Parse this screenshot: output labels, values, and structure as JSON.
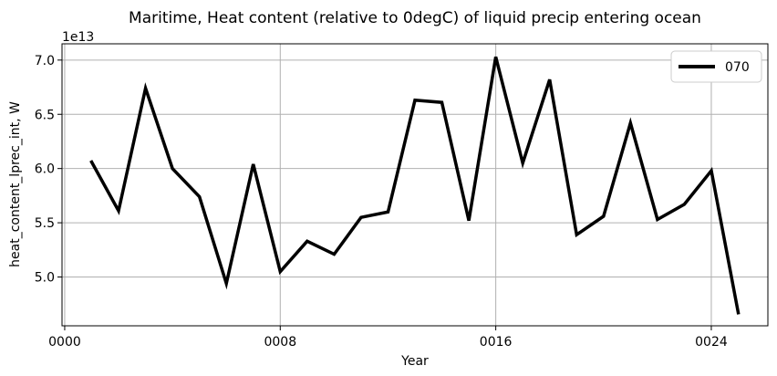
{
  "chart_data": {
    "type": "line",
    "title": "Maritime, Heat content (relative to 0degC) of liquid precip entering ocean",
    "xlabel": "Year",
    "ylabel": "heat_content_lprec_int, W",
    "y_offset_label": "1e13",
    "xlim": [
      -0.1,
      26.1
    ],
    "ylim": [
      4.55,
      7.15
    ],
    "x_ticks": [
      0,
      8,
      16,
      24
    ],
    "x_tick_labels": [
      "0000",
      "0008",
      "0016",
      "0024"
    ],
    "y_ticks": [
      5.0,
      5.5,
      6.0,
      6.5,
      7.0
    ],
    "y_tick_labels": [
      "5.0",
      "5.5",
      "6.0",
      "6.5",
      "7.0"
    ],
    "grid": true,
    "legend_position": "top-right",
    "series": [
      {
        "name": "070",
        "color": "#000000",
        "x": [
          1,
          2,
          3,
          4,
          5,
          6,
          7,
          8,
          9,
          10,
          11,
          12,
          13,
          14,
          15,
          16,
          17,
          18,
          19,
          20,
          21,
          22,
          23,
          24,
          25
        ],
        "values": [
          6.06,
          5.61,
          6.74,
          6.0,
          5.74,
          4.94,
          6.04,
          5.05,
          5.33,
          5.21,
          5.55,
          5.6,
          6.63,
          6.61,
          5.52,
          7.03,
          6.05,
          6.82,
          5.39,
          5.56,
          6.42,
          5.53,
          5.67,
          5.98,
          4.67
        ]
      }
    ]
  }
}
